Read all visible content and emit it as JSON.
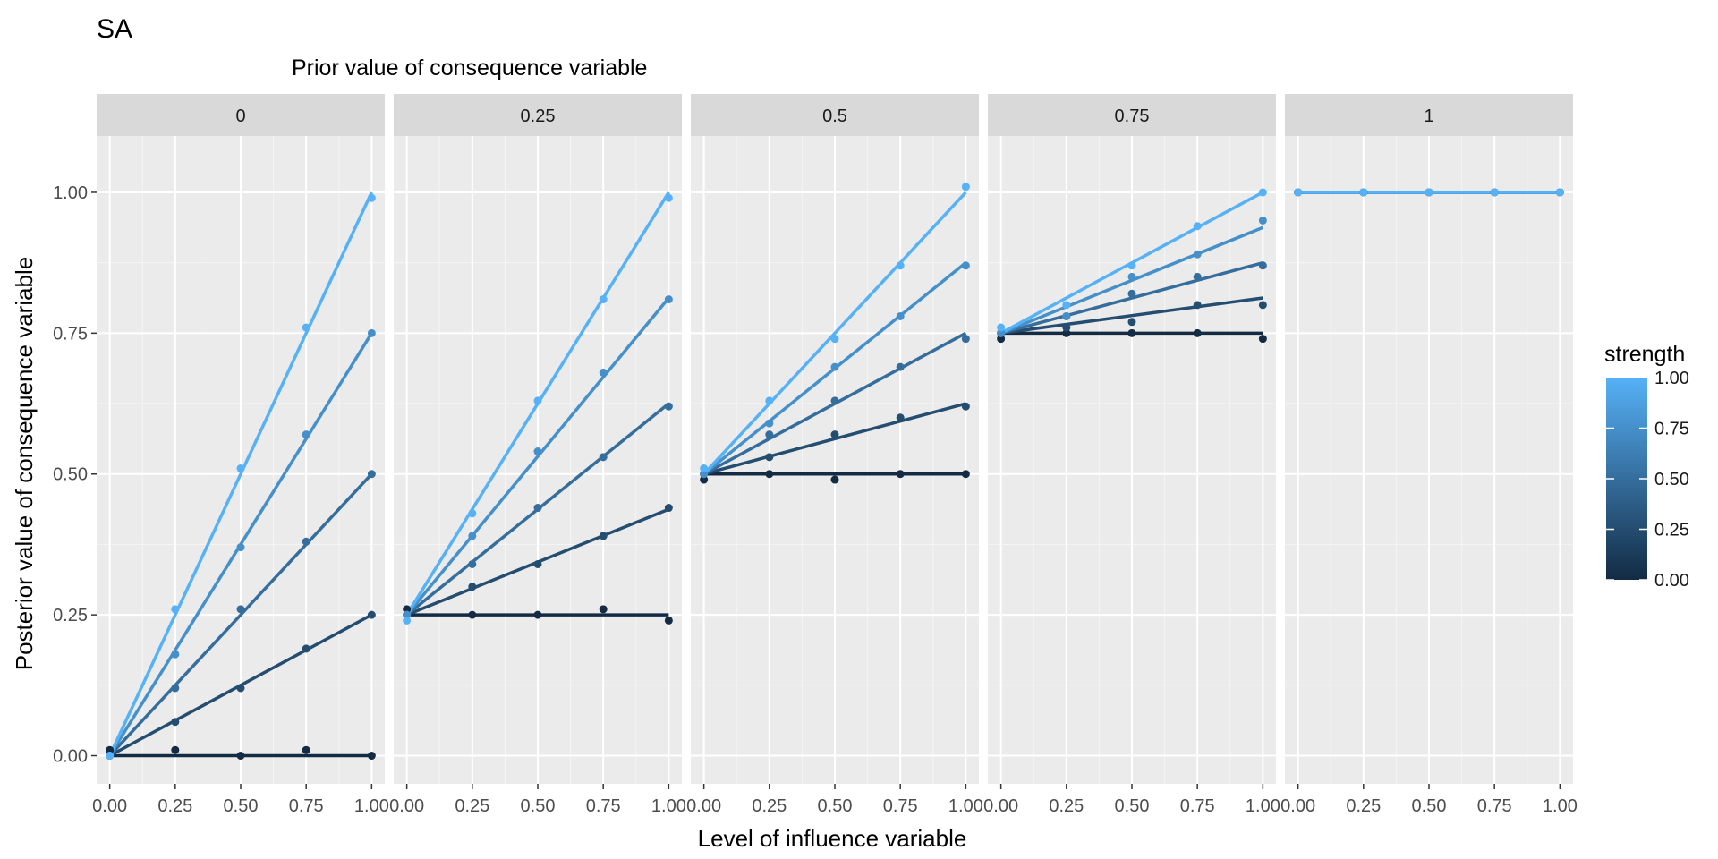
{
  "chart_data": {
    "type": "scatter",
    "title": "SA",
    "facet_title": "Prior value of consequence variable",
    "xlabel": "Level of influence variable",
    "ylabel": "Posterior value of consequence variable",
    "facets": [
      "0",
      "0.25",
      "0.5",
      "0.75",
      "1"
    ],
    "priors": [
      0,
      0.25,
      0.5,
      0.75,
      1
    ],
    "x_ticks": [
      0,
      0.25,
      0.5,
      0.75,
      1
    ],
    "x_tick_labels": [
      "0.00",
      "0.25",
      "0.50",
      "0.75",
      "1.00"
    ],
    "y_ticks": [
      0,
      0.25,
      0.5,
      0.75,
      1
    ],
    "y_tick_labels": [
      "0.00",
      "0.25",
      "0.50",
      "0.75",
      "1.00"
    ],
    "xlim": [
      -0.05,
      1.05
    ],
    "ylim": [
      -0.05,
      1.1
    ],
    "grid": true,
    "legend": {
      "title": "strength",
      "position": "right",
      "type": "colorbar",
      "low_color": "#132B43",
      "high_color": "#56B1F7",
      "range": [
        0,
        1
      ],
      "tick_values": [
        0,
        0.25,
        0.5,
        0.75,
        1
      ],
      "tick_labels": [
        "0.00",
        "0.25",
        "0.50",
        "0.75",
        "1.00"
      ]
    },
    "strengths": [
      0,
      0.25,
      0.5,
      0.75,
      1
    ],
    "x": [
      0,
      0.25,
      0.5,
      0.75,
      1
    ],
    "series": [
      {
        "prior": "0",
        "points": [
          {
            "strength": 0,
            "y": [
              0.01,
              0.01,
              0.0,
              0.01,
              0.0
            ]
          },
          {
            "strength": 0.25,
            "y": [
              0.0,
              0.06,
              0.12,
              0.19,
              0.25
            ]
          },
          {
            "strength": 0.5,
            "y": [
              0.0,
              0.12,
              0.26,
              0.38,
              0.5
            ]
          },
          {
            "strength": 0.75,
            "y": [
              0.0,
              0.18,
              0.37,
              0.57,
              0.75
            ]
          },
          {
            "strength": 1,
            "y": [
              0.0,
              0.26,
              0.51,
              0.76,
              0.99
            ]
          }
        ]
      },
      {
        "prior": "0.25",
        "points": [
          {
            "strength": 0,
            "y": [
              0.26,
              0.25,
              0.25,
              0.26,
              0.24
            ]
          },
          {
            "strength": 0.25,
            "y": [
              0.25,
              0.3,
              0.34,
              0.39,
              0.44
            ]
          },
          {
            "strength": 0.5,
            "y": [
              0.25,
              0.34,
              0.44,
              0.53,
              0.62
            ]
          },
          {
            "strength": 0.75,
            "y": [
              0.25,
              0.39,
              0.54,
              0.68,
              0.81
            ]
          },
          {
            "strength": 1,
            "y": [
              0.24,
              0.43,
              0.63,
              0.81,
              0.99
            ]
          }
        ]
      },
      {
        "prior": "0.5",
        "points": [
          {
            "strength": 0,
            "y": [
              0.49,
              0.5,
              0.49,
              0.5,
              0.5
            ]
          },
          {
            "strength": 0.25,
            "y": [
              0.5,
              0.53,
              0.57,
              0.6,
              0.62
            ]
          },
          {
            "strength": 0.5,
            "y": [
              0.5,
              0.57,
              0.63,
              0.69,
              0.74
            ]
          },
          {
            "strength": 0.75,
            "y": [
              0.5,
              0.59,
              0.69,
              0.78,
              0.87
            ]
          },
          {
            "strength": 1,
            "y": [
              0.51,
              0.63,
              0.74,
              0.87,
              1.01
            ]
          }
        ]
      },
      {
        "prior": "0.75",
        "points": [
          {
            "strength": 0,
            "y": [
              0.74,
              0.75,
              0.75,
              0.75,
              0.74
            ]
          },
          {
            "strength": 0.25,
            "y": [
              0.75,
              0.76,
              0.77,
              0.8,
              0.8
            ]
          },
          {
            "strength": 0.5,
            "y": [
              0.75,
              0.78,
              0.82,
              0.85,
              0.87
            ]
          },
          {
            "strength": 0.75,
            "y": [
              0.75,
              0.78,
              0.85,
              0.89,
              0.95
            ]
          },
          {
            "strength": 1,
            "y": [
              0.76,
              0.8,
              0.87,
              0.94,
              1.0
            ]
          }
        ]
      },
      {
        "prior": "1",
        "points": [
          {
            "strength": 0,
            "y": [
              1.0,
              1.0,
              1.0,
              1.0,
              1.0
            ]
          },
          {
            "strength": 0.25,
            "y": [
              1.0,
              1.0,
              1.0,
              1.0,
              1.0
            ]
          },
          {
            "strength": 0.5,
            "y": [
              1.0,
              1.0,
              1.0,
              1.0,
              1.0
            ]
          },
          {
            "strength": 0.75,
            "y": [
              1.0,
              1.0,
              1.0,
              1.0,
              1.0
            ]
          },
          {
            "strength": 1,
            "y": [
              1.0,
              1.0,
              1.0,
              1.0,
              1.0
            ]
          }
        ]
      }
    ]
  }
}
